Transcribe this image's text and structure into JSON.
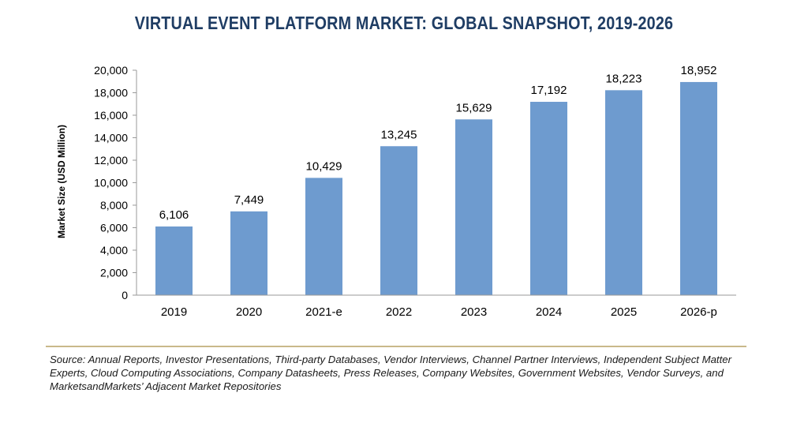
{
  "chart_data": {
    "type": "bar",
    "title": "VIRTUAL EVENT PLATFORM MARKET: GLOBAL SNAPSHOT, 2019-2026",
    "xlabel": "",
    "ylabel": "Market Size (USD Million)",
    "categories": [
      "2019",
      "2020",
      "2021-e",
      "2022",
      "2023",
      "2024",
      "2025",
      "2026-p"
    ],
    "values": [
      6106,
      7449,
      10429,
      13245,
      15629,
      17192,
      18223,
      18952
    ],
    "value_labels": [
      "6,106",
      "7,449",
      "10,429",
      "13,245",
      "15,629",
      "17,192",
      "18,223",
      "18,952"
    ],
    "ylim": [
      0,
      20000
    ],
    "yticks": [
      0,
      2000,
      4000,
      6000,
      8000,
      10000,
      12000,
      14000,
      16000,
      18000,
      20000
    ],
    "ytick_labels": [
      "0",
      "2,000",
      "4,000",
      "6,000",
      "8,000",
      "10,000",
      "12,000",
      "14,000",
      "16,000",
      "18,000",
      "20,000"
    ],
    "grid": false,
    "bar_color": "#6e9bcf",
    "axis_color": "#9a9a9a"
  },
  "source_text": "Source: Annual Reports, Investor Presentations, Third-party Databases, Vendor Interviews, Channel Partner Interviews, Independent Subject Matter Experts, Cloud Computing Associations, Company Datasheets, Press Releases, Company Websites, Government Websites, Vendor Surveys, and MarketsandMarkets’ Adjacent Market Repositories",
  "rule_color": "#c9b98a"
}
